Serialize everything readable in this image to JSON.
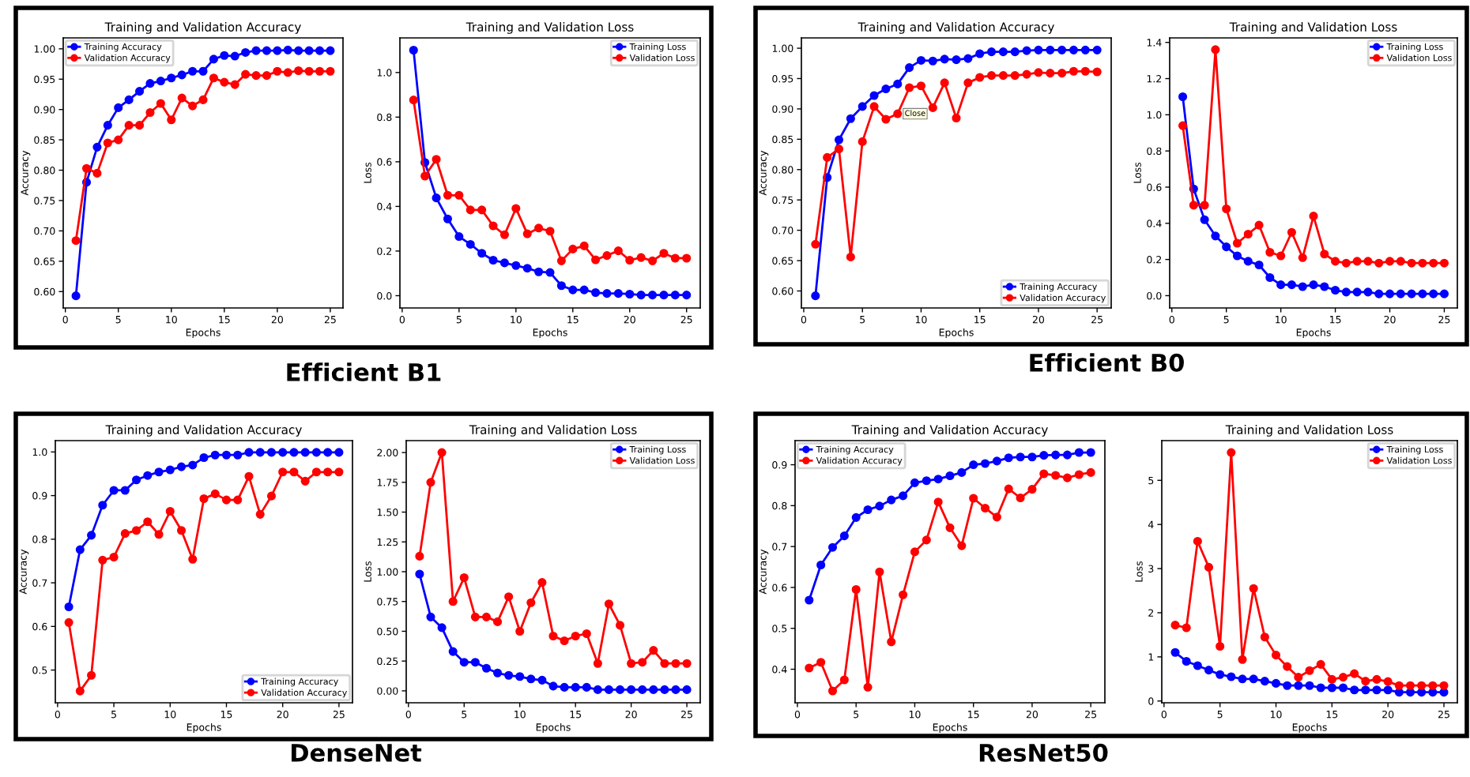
{
  "chart_data": [
    {
      "type": "line",
      "title": "Training and Validation Accuracy",
      "xlabel": "Epochs",
      "ylabel": "Accuracy",
      "x": [
        1,
        2,
        3,
        4,
        5,
        6,
        7,
        8,
        9,
        10,
        11,
        12,
        13,
        14,
        15,
        16,
        17,
        18,
        19,
        20,
        21,
        22,
        23,
        24,
        25
      ],
      "marker": "circle",
      "legend": "top left",
      "annotations": [
        "Efficient B1"
      ],
      "series": [
        {
          "name": "Training Accuracy",
          "color": "#0000ff",
          "values": [
            0.593,
            0.78,
            0.838,
            0.874,
            0.903,
            0.916,
            0.93,
            0.943,
            0.947,
            0.952,
            0.957,
            0.963,
            0.963,
            0.983,
            0.989,
            0.988,
            0.994,
            0.997,
            0.997,
            0.997,
            0.998,
            0.997,
            0.997,
            0.997,
            0.997
          ]
        },
        {
          "name": "Validation Accuracy",
          "color": "#ff0000",
          "values": [
            0.684,
            0.803,
            0.795,
            0.845,
            0.85,
            0.874,
            0.874,
            0.895,
            0.91,
            0.883,
            0.919,
            0.906,
            0.916,
            0.952,
            0.945,
            0.941,
            0.958,
            0.956,
            0.956,
            0.963,
            0.961,
            0.964,
            0.963,
            0.963,
            0.963
          ]
        }
      ],
      "xlim": [
        -0.2,
        26.2
      ],
      "ylim": [
        0.573,
        1.018
      ],
      "xticks": [
        0,
        5,
        10,
        15,
        20,
        25
      ],
      "yticks": [
        {
          "value": 0.6,
          "label": "0.60"
        },
        {
          "value": 0.65,
          "label": "0.65"
        },
        {
          "value": 0.7,
          "label": "0.70"
        },
        {
          "value": 0.75,
          "label": "0.75"
        },
        {
          "value": 0.8,
          "label": "0.80"
        },
        {
          "value": 0.85,
          "label": "0.85"
        },
        {
          "value": 0.9,
          "label": "0.90"
        },
        {
          "value": 0.95,
          "label": "0.95"
        },
        {
          "value": 1.0,
          "label": "1.00"
        }
      ]
    },
    {
      "type": "line",
      "title": "Training and Validation Loss",
      "xlabel": "Epochs",
      "ylabel": "Loss",
      "x": [
        1,
        2,
        3,
        4,
        5,
        6,
        7,
        8,
        9,
        10,
        11,
        12,
        13,
        14,
        15,
        16,
        17,
        18,
        19,
        20,
        21,
        22,
        23,
        24,
        25
      ],
      "marker": "circle",
      "legend": "top right",
      "series": [
        {
          "name": "Training Loss",
          "color": "#0000ff",
          "values": [
            1.1,
            0.597,
            0.438,
            0.344,
            0.265,
            0.23,
            0.19,
            0.159,
            0.147,
            0.135,
            0.123,
            0.107,
            0.104,
            0.045,
            0.026,
            0.026,
            0.014,
            0.01,
            0.01,
            0.007,
            0.003,
            0.003,
            0.003,
            0.003,
            0.003
          ]
        },
        {
          "name": "Validation Loss",
          "color": "#ff0000",
          "values": [
            0.877,
            0.536,
            0.611,
            0.45,
            0.45,
            0.384,
            0.384,
            0.313,
            0.273,
            0.391,
            0.277,
            0.303,
            0.289,
            0.156,
            0.209,
            0.223,
            0.161,
            0.18,
            0.201,
            0.159,
            0.171,
            0.156,
            0.19,
            0.168,
            0.168
          ]
        }
      ],
      "xlim": [
        -0.2,
        26.2
      ],
      "ylim": [
        -0.055,
        1.155
      ],
      "xticks": [
        0,
        5,
        10,
        15,
        20,
        25
      ],
      "yticks": [
        {
          "value": 0.0,
          "label": "0.0"
        },
        {
          "value": 0.2,
          "label": "0.2"
        },
        {
          "value": 0.4,
          "label": "0.4"
        },
        {
          "value": 0.6,
          "label": "0.6"
        },
        {
          "value": 0.8,
          "label": "0.8"
        },
        {
          "value": 1.0,
          "label": "1.0"
        }
      ]
    },
    {
      "type": "line",
      "title": "Training and Validation Accuracy",
      "xlabel": "Epochs",
      "ylabel": "Accuracy",
      "x": [
        1,
        2,
        3,
        4,
        5,
        6,
        7,
        8,
        9,
        10,
        11,
        12,
        13,
        14,
        15,
        16,
        17,
        18,
        19,
        20,
        21,
        22,
        23,
        24,
        25
      ],
      "marker": "circle",
      "legend": "bottom right",
      "annotations": [
        "Efficient B0",
        {
          "text": "Close",
          "x": 8.6,
          "y": 0.892
        }
      ],
      "series": [
        {
          "name": "Training Accuracy",
          "color": "#0000ff",
          "values": [
            0.592,
            0.787,
            0.849,
            0.884,
            0.904,
            0.922,
            0.933,
            0.941,
            0.968,
            0.98,
            0.979,
            0.982,
            0.981,
            0.983,
            0.991,
            0.994,
            0.994,
            0.994,
            0.996,
            0.997,
            0.997,
            0.997,
            0.997,
            0.997,
            0.997
          ]
        },
        {
          "name": "Validation Accuracy",
          "color": "#ff0000",
          "values": [
            0.677,
            0.82,
            0.834,
            0.656,
            0.846,
            0.904,
            0.883,
            0.892,
            0.935,
            0.938,
            0.902,
            0.943,
            0.885,
            0.943,
            0.952,
            0.955,
            0.955,
            0.955,
            0.957,
            0.96,
            0.959,
            0.959,
            0.962,
            0.962,
            0.961
          ]
        }
      ],
      "xlim": [
        -0.2,
        26.2
      ],
      "ylim": [
        0.572,
        1.017
      ],
      "xticks": [
        0,
        5,
        10,
        15,
        20,
        25
      ],
      "yticks": [
        {
          "value": 0.6,
          "label": "0.60"
        },
        {
          "value": 0.65,
          "label": "0.65"
        },
        {
          "value": 0.7,
          "label": "0.70"
        },
        {
          "value": 0.75,
          "label": "0.75"
        },
        {
          "value": 0.8,
          "label": "0.80"
        },
        {
          "value": 0.85,
          "label": "0.85"
        },
        {
          "value": 0.9,
          "label": "0.90"
        },
        {
          "value": 0.95,
          "label": "0.95"
        },
        {
          "value": 1.0,
          "label": "1.00"
        }
      ]
    },
    {
      "type": "line",
      "title": "Training and Validation Loss",
      "xlabel": "Epochs",
      "ylabel": "Loss",
      "x": [
        1,
        2,
        3,
        4,
        5,
        6,
        7,
        8,
        9,
        10,
        11,
        12,
        13,
        14,
        15,
        16,
        17,
        18,
        19,
        20,
        21,
        22,
        23,
        24,
        25
      ],
      "marker": "circle",
      "legend": "top right",
      "series": [
        {
          "name": "Training Loss",
          "color": "#0000ff",
          "values": [
            1.1,
            0.59,
            0.42,
            0.33,
            0.27,
            0.22,
            0.19,
            0.17,
            0.1,
            0.06,
            0.06,
            0.05,
            0.06,
            0.05,
            0.03,
            0.02,
            0.02,
            0.02,
            0.01,
            0.01,
            0.01,
            0.01,
            0.01,
            0.01,
            0.01
          ]
        },
        {
          "name": "Validation Loss",
          "color": "#ff0000",
          "values": [
            0.94,
            0.5,
            0.5,
            1.36,
            0.48,
            0.29,
            0.34,
            0.39,
            0.24,
            0.22,
            0.35,
            0.21,
            0.44,
            0.23,
            0.19,
            0.18,
            0.19,
            0.19,
            0.18,
            0.19,
            0.19,
            0.18,
            0.18,
            0.18,
            0.18
          ]
        }
      ],
      "xlim": [
        -0.2,
        26.2
      ],
      "ylim": [
        -0.068,
        1.425
      ],
      "xticks": [
        0,
        5,
        10,
        15,
        20,
        25
      ],
      "yticks": [
        {
          "value": 0.0,
          "label": "0.0"
        },
        {
          "value": 0.2,
          "label": "0.2"
        },
        {
          "value": 0.4,
          "label": "0.4"
        },
        {
          "value": 0.6,
          "label": "0.6"
        },
        {
          "value": 0.8,
          "label": "0.8"
        },
        {
          "value": 1.0,
          "label": "1.0"
        },
        {
          "value": 1.2,
          "label": "1.2"
        },
        {
          "value": 1.4,
          "label": "1.4"
        }
      ]
    },
    {
      "type": "line",
      "title": "Training and Validation Accuracy",
      "xlabel": "Epochs",
      "ylabel": "Accuracy",
      "x": [
        1,
        2,
        3,
        4,
        5,
        6,
        7,
        8,
        9,
        10,
        11,
        12,
        13,
        14,
        15,
        16,
        17,
        18,
        19,
        20,
        21,
        22,
        23,
        24,
        25
      ],
      "marker": "circle",
      "legend": "bottom right",
      "annotations": [
        "DenseNet"
      ],
      "series": [
        {
          "name": "Training Accuracy",
          "color": "#0000ff",
          "values": [
            0.645,
            0.776,
            0.809,
            0.878,
            0.912,
            0.912,
            0.936,
            0.946,
            0.954,
            0.959,
            0.966,
            0.97,
            0.987,
            0.993,
            0.993,
            0.993,
            0.999,
            0.999,
            0.999,
            0.999,
            0.999,
            0.999,
            0.999,
            0.999,
            0.999
          ]
        },
        {
          "name": "Validation Accuracy",
          "color": "#ff0000",
          "values": [
            0.609,
            0.452,
            0.488,
            0.752,
            0.759,
            0.813,
            0.82,
            0.84,
            0.811,
            0.864,
            0.82,
            0.754,
            0.893,
            0.904,
            0.89,
            0.89,
            0.944,
            0.857,
            0.899,
            0.954,
            0.954,
            0.933,
            0.954,
            0.954,
            0.954
          ]
        }
      ],
      "xlim": [
        -0.2,
        26.2
      ],
      "ylim": [
        0.425,
        1.026
      ],
      "xticks": [
        0,
        5,
        10,
        15,
        20,
        25
      ],
      "yticks": [
        {
          "value": 0.5,
          "label": "0.5"
        },
        {
          "value": 0.6,
          "label": "0.6"
        },
        {
          "value": 0.7,
          "label": "0.7"
        },
        {
          "value": 0.8,
          "label": "0.8"
        },
        {
          "value": 0.9,
          "label": "0.9"
        },
        {
          "value": 1.0,
          "label": "1.0"
        }
      ]
    },
    {
      "type": "line",
      "title": "Training and Validation Loss",
      "xlabel": "Epochs",
      "ylabel": "Loss",
      "x": [
        1,
        2,
        3,
        4,
        5,
        6,
        7,
        8,
        9,
        10,
        11,
        12,
        13,
        14,
        15,
        16,
        17,
        18,
        19,
        20,
        21,
        22,
        23,
        24,
        25
      ],
      "marker": "circle",
      "legend": "top right",
      "series": [
        {
          "name": "Training Loss",
          "color": "#0000ff",
          "values": [
            0.98,
            0.62,
            0.53,
            0.33,
            0.24,
            0.24,
            0.19,
            0.15,
            0.13,
            0.12,
            0.1,
            0.09,
            0.04,
            0.03,
            0.03,
            0.03,
            0.01,
            0.01,
            0.01,
            0.01,
            0.01,
            0.01,
            0.01,
            0.01,
            0.01
          ]
        },
        {
          "name": "Validation Loss",
          "color": "#ff0000",
          "values": [
            1.13,
            1.75,
            2.0,
            0.75,
            0.95,
            0.62,
            0.62,
            0.58,
            0.79,
            0.5,
            0.74,
            0.91,
            0.46,
            0.42,
            0.46,
            0.48,
            0.23,
            0.73,
            0.55,
            0.23,
            0.24,
            0.34,
            0.23,
            0.23,
            0.23
          ]
        }
      ],
      "xlim": [
        -0.2,
        26.2
      ],
      "ylim": [
        -0.1,
        2.1
      ],
      "xticks": [
        0,
        5,
        10,
        15,
        20,
        25
      ],
      "yticks": [
        {
          "value": 0.0,
          "label": "0.00"
        },
        {
          "value": 0.25,
          "label": "0.25"
        },
        {
          "value": 0.5,
          "label": "0.50"
        },
        {
          "value": 0.75,
          "label": "0.75"
        },
        {
          "value": 1.0,
          "label": "1.00"
        },
        {
          "value": 1.25,
          "label": "1.25"
        },
        {
          "value": 1.5,
          "label": "1.50"
        },
        {
          "value": 1.75,
          "label": "1.75"
        },
        {
          "value": 2.0,
          "label": "2.00"
        }
      ]
    },
    {
      "type": "line",
      "title": "Training and Validation Accuracy",
      "xlabel": "Epochs",
      "ylabel": "Accuracy",
      "x": [
        1,
        2,
        3,
        4,
        5,
        6,
        7,
        8,
        9,
        10,
        11,
        12,
        13,
        14,
        15,
        16,
        17,
        18,
        19,
        20,
        21,
        22,
        23,
        24,
        25
      ],
      "marker": "circle",
      "legend": "top left",
      "annotations": [
        "ResNet50"
      ],
      "series": [
        {
          "name": "Training Accuracy",
          "color": "#0000ff",
          "values": [
            0.569,
            0.655,
            0.698,
            0.726,
            0.771,
            0.79,
            0.799,
            0.814,
            0.824,
            0.856,
            0.861,
            0.865,
            0.873,
            0.881,
            0.9,
            0.903,
            0.909,
            0.917,
            0.919,
            0.919,
            0.923,
            0.924,
            0.924,
            0.93,
            0.93
          ]
        },
        {
          "name": "Validation Accuracy",
          "color": "#ff0000",
          "values": [
            0.403,
            0.417,
            0.347,
            0.374,
            0.595,
            0.356,
            0.638,
            0.467,
            0.582,
            0.687,
            0.716,
            0.809,
            0.746,
            0.702,
            0.818,
            0.794,
            0.772,
            0.841,
            0.819,
            0.84,
            0.878,
            0.874,
            0.868,
            0.876,
            0.881
          ]
        }
      ],
      "xlim": [
        -0.2,
        26.2
      ],
      "ylim": [
        0.318,
        0.959
      ],
      "xticks": [
        0,
        5,
        10,
        15,
        20,
        25
      ],
      "yticks": [
        {
          "value": 0.4,
          "label": "0.4"
        },
        {
          "value": 0.5,
          "label": "0.5"
        },
        {
          "value": 0.6,
          "label": "0.6"
        },
        {
          "value": 0.7,
          "label": "0.7"
        },
        {
          "value": 0.8,
          "label": "0.8"
        },
        {
          "value": 0.9,
          "label": "0.9"
        }
      ]
    },
    {
      "type": "line",
      "title": "Training and Validation Loss",
      "xlabel": "Epochs",
      "ylabel": "Loss",
      "x": [
        1,
        2,
        3,
        4,
        5,
        6,
        7,
        8,
        9,
        10,
        11,
        12,
        13,
        14,
        15,
        16,
        17,
        18,
        19,
        20,
        21,
        22,
        23,
        24,
        25
      ],
      "marker": "circle",
      "legend": "top right",
      "series": [
        {
          "name": "Training Loss",
          "color": "#0000ff",
          "values": [
            1.1,
            0.9,
            0.8,
            0.7,
            0.6,
            0.55,
            0.5,
            0.5,
            0.45,
            0.4,
            0.35,
            0.35,
            0.35,
            0.3,
            0.3,
            0.3,
            0.25,
            0.25,
            0.25,
            0.25,
            0.2,
            0.2,
            0.2,
            0.2,
            0.2
          ]
        },
        {
          "name": "Validation Loss",
          "color": "#ff0000",
          "values": [
            1.72,
            1.66,
            3.62,
            3.03,
            1.24,
            5.63,
            0.94,
            2.55,
            1.45,
            1.04,
            0.78,
            0.54,
            0.69,
            0.83,
            0.49,
            0.54,
            0.62,
            0.45,
            0.49,
            0.44,
            0.35,
            0.35,
            0.35,
            0.35,
            0.35
          ]
        }
      ],
      "xlim": [
        -0.2,
        26.2
      ],
      "ylim": [
        -0.04,
        5.9
      ],
      "xticks": [
        0,
        5,
        10,
        15,
        20,
        25
      ],
      "yticks": [
        0,
        1,
        2,
        3,
        4,
        5
      ]
    }
  ]
}
